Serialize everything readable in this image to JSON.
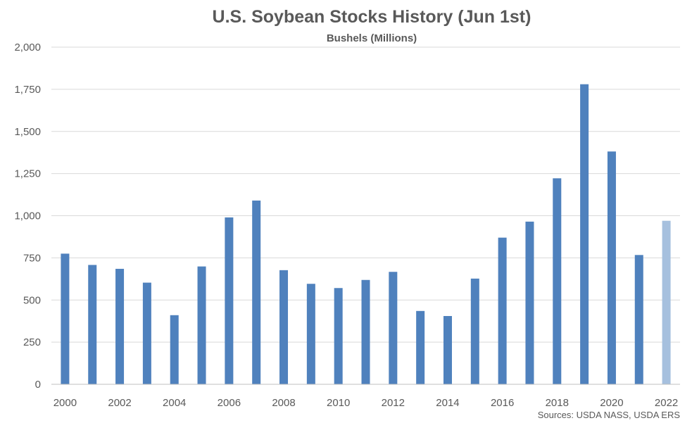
{
  "chart_data": {
    "type": "bar",
    "title": "U.S. Soybean Stocks History (Jun 1st)",
    "subtitle": "Bushels (Millions)",
    "source": "Sources: USDA NASS, USDA ERS",
    "categories": [
      "2000",
      "2001",
      "2002",
      "2003",
      "2004",
      "2005",
      "2006",
      "2007",
      "2008",
      "2009",
      "2010",
      "2011",
      "2012",
      "2013",
      "2014",
      "2015",
      "2016",
      "2017",
      "2018",
      "2019",
      "2020",
      "2021",
      "2022"
    ],
    "x_tick_labels": [
      "2000",
      "2002",
      "2004",
      "2006",
      "2008",
      "2010",
      "2012",
      "2014",
      "2016",
      "2018",
      "2020",
      "2022"
    ],
    "series": [
      {
        "values": [
          775,
          708,
          685,
          603,
          410,
          699,
          990,
          1090,
          677,
          596,
          571,
          619,
          667,
          435,
          405,
          627,
          870,
          965,
          1222,
          1780,
          1381,
          767,
          970
        ]
      }
    ],
    "ylim": [
      0,
      2000
    ],
    "y_ticks": [
      0,
      250,
      500,
      750,
      1000,
      1250,
      1500,
      1750,
      2000
    ],
    "y_tick_labels": [
      "0",
      "250",
      "500",
      "750",
      "1,000",
      "1,250",
      "1,500",
      "1,750",
      "2,000"
    ],
    "grid": true,
    "legend": "none",
    "colors": {
      "bar": "#4f81bd",
      "highlight_bar": "#a6c0de",
      "highlight_category": "2022"
    }
  }
}
